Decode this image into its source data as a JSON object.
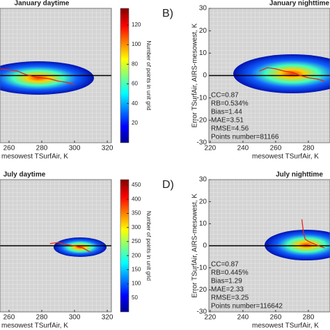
{
  "chart_data": [
    {
      "type": "line",
      "title": "January daytime",
      "xlabel": "mesowest TSurfAir, K",
      "xlim": [
        254.5,
        322.5
      ],
      "xticks": [
        260,
        280,
        300,
        320
      ],
      "ylim": [
        -30,
        30
      ],
      "hline": 0,
      "series": [
        {
          "color": "#e8261a",
          "x": [
            255,
            260,
            265,
            270,
            275,
            280,
            285,
            290,
            295,
            300
          ],
          "values": [
            3,
            2.5,
            2,
            0.5,
            -0.5,
            -1,
            -1.5,
            -2.5,
            -3,
            -4
          ]
        }
      ],
      "colorbar": {
        "label": "Number of points in unit grid",
        "lim": [
          0,
          137
        ],
        "ticks": [
          20,
          40,
          60,
          80,
          100,
          120
        ]
      }
    },
    {
      "type": "line",
      "title": "January nighttime",
      "panel_label": "B)",
      "xlabel": "mesowest TSurfAir, K",
      "ylabel": "Error TSurfAir, AIRS-mesowest, K",
      "xlim": [
        219.2,
        293.2
      ],
      "xticks": [
        220,
        240,
        260,
        280
      ],
      "ylim": [
        -30,
        30
      ],
      "yticks": [
        -30,
        -20,
        -10,
        0,
        10,
        20,
        30
      ],
      "hline": 0,
      "series": [
        {
          "color": "#e8261a",
          "x": [
            250,
            255,
            260,
            265,
            270,
            275,
            280,
            285,
            290
          ],
          "values": [
            2,
            3.5,
            3,
            2,
            1.5,
            0,
            -1,
            -1.5,
            -2.5
          ]
        }
      ],
      "annotations": [
        "CC=0.87",
        "RB=0.534%",
        "Bias=1.44",
        "MAE=3.51",
        "RMSE=4.56",
        "Points number=81166"
      ]
    },
    {
      "type": "line",
      "title": "July daytime",
      "xlabel": "mesowest TSurfAir, K",
      "xlim": [
        254.5,
        322.5
      ],
      "xticks": [
        260,
        280,
        300,
        320
      ],
      "ylim": [
        -30,
        30
      ],
      "hline": 0,
      "series": [
        {
          "color": "#e8261a",
          "x": [
            285,
            290,
            295,
            300,
            305,
            310
          ],
          "values": [
            1,
            1.5,
            0.5,
            0,
            -1,
            -3
          ]
        }
      ],
      "colorbar": {
        "label": "Number of points in unit grid",
        "lim": [
          0,
          470
        ],
        "ticks": [
          50,
          100,
          150,
          200,
          250,
          300,
          350,
          400,
          450
        ]
      }
    },
    {
      "type": "line",
      "title": "July nighttime",
      "panel_label": "D)",
      "xlabel": "mesowest TSurfAir, K",
      "ylabel": "Error TSurfAir, AIRS-mesowest, K",
      "xlim": [
        219.2,
        293.2
      ],
      "xticks": [
        220,
        240,
        260,
        280
      ],
      "ylim": [
        -30,
        30
      ],
      "yticks": [
        -30,
        -20,
        -10,
        0,
        10,
        20,
        30
      ],
      "hline": 0,
      "series": [
        {
          "color": "#e8261a",
          "x": [
            276,
            277,
            278,
            280,
            283,
            286,
            290
          ],
          "values": [
            12,
            6,
            3,
            2,
            1,
            0,
            -1
          ]
        }
      ],
      "annotations": [
        "CC=0.87",
        "RB=0.445%",
        "Bias=1.29",
        "MAE=2.33",
        "RMSE=3.25",
        "Points number=116642"
      ]
    }
  ]
}
